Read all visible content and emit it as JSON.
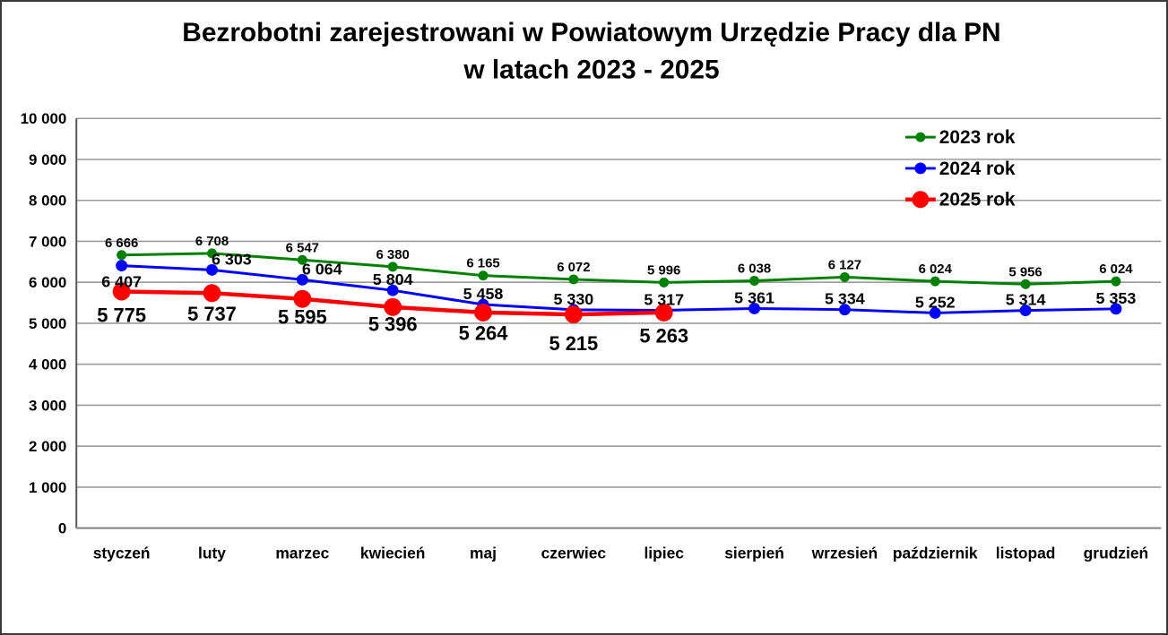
{
  "title": {
    "line1": "Bezrobotni zarejestrowani w Powiatowym Urzędzie Pracy dla PN",
    "line2": "w latach 2023 - 2025"
  },
  "chart_data": {
    "type": "line",
    "categories": [
      "styczeń",
      "luty",
      "marzec",
      "kwiecień",
      "maj",
      "czerwiec",
      "lipiec",
      "sierpień",
      "wrzesień",
      "październik",
      "listopad",
      "grudzień"
    ],
    "series": [
      {
        "name": "2023 rok",
        "color": "#008000",
        "values": [
          6666,
          6708,
          6547,
          6380,
          6165,
          6072,
          5996,
          6038,
          6127,
          6024,
          5956,
          6024
        ]
      },
      {
        "name": "2024 rok",
        "color": "#0000FF",
        "values": [
          6407,
          6303,
          6064,
          5804,
          5458,
          5330,
          5317,
          5361,
          5334,
          5252,
          5314,
          5353
        ]
      },
      {
        "name": "2025 rok",
        "color": "#FF0000",
        "values": [
          5775,
          5737,
          5595,
          5396,
          5264,
          5215,
          5263
        ]
      }
    ],
    "ylim": [
      0,
      10000
    ],
    "ytick_step": 1000,
    "yticks": [
      0,
      1000,
      2000,
      3000,
      4000,
      5000,
      6000,
      7000,
      8000,
      9000,
      10000
    ],
    "grid": "horizontal",
    "legend_position": "top-right",
    "legend_labels": [
      "2023 rok",
      "2024 rok",
      "2025 rok"
    ],
    "data_labels_visible": true,
    "number_format": "space-thousands"
  },
  "colors": {
    "background": "#FFFFFF",
    "border": "#3A3A3A",
    "gridline": "#9B9B9B",
    "y_axis": "#595959",
    "x_axis": "#808080",
    "text": "#000000"
  }
}
